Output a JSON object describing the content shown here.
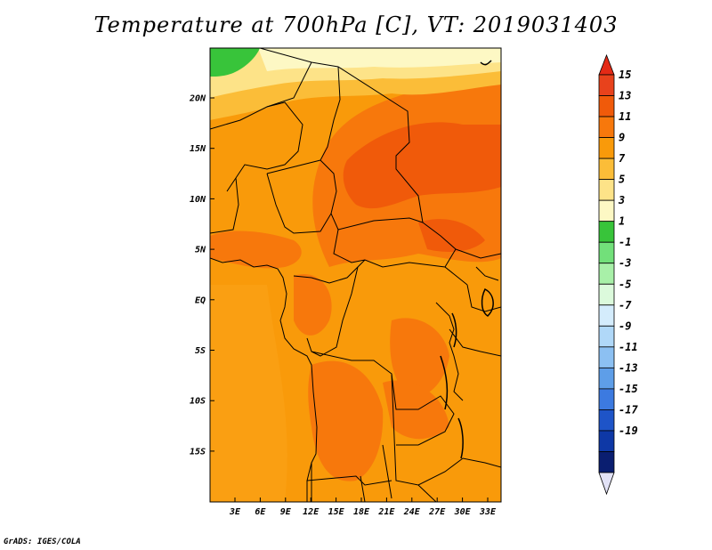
{
  "title": "Temperature at 700hPa [C], VT: 2019031403",
  "credit": "GrADS: IGES/COLA",
  "map": {
    "lat_labels": [
      "20N",
      "15N",
      "10N",
      "5N",
      "EQ",
      "5S",
      "10S",
      "15S"
    ],
    "lon_labels": [
      "3E",
      "6E",
      "9E",
      "12E",
      "15E",
      "18E",
      "21E",
      "24E",
      "27E",
      "30E",
      "33E"
    ]
  },
  "colorbar": {
    "labels": [
      "15",
      "13",
      "11",
      "9",
      "7",
      "5",
      "3",
      "1",
      "-1",
      "-3",
      "-5",
      "-7",
      "-9",
      "-11",
      "-13",
      "-15",
      "-17",
      "-19"
    ],
    "colors": [
      "#e8421c",
      "#f05a0a",
      "#f7780c",
      "#f99a0a",
      "#fbbd38",
      "#fde388",
      "#fdf8c4",
      "#38c43a",
      "#72e07a",
      "#a8f0a8",
      "#dcfadc",
      "#d4ecfc",
      "#b0d8f8",
      "#8cc0f2",
      "#5e9ee8",
      "#3c7ae0",
      "#1e54c8",
      "#0e38a6",
      "#0a1e70"
    ],
    "upper_arrow_color": "#e42a16",
    "lower_arrow_color": "#e2e2f6"
  }
}
